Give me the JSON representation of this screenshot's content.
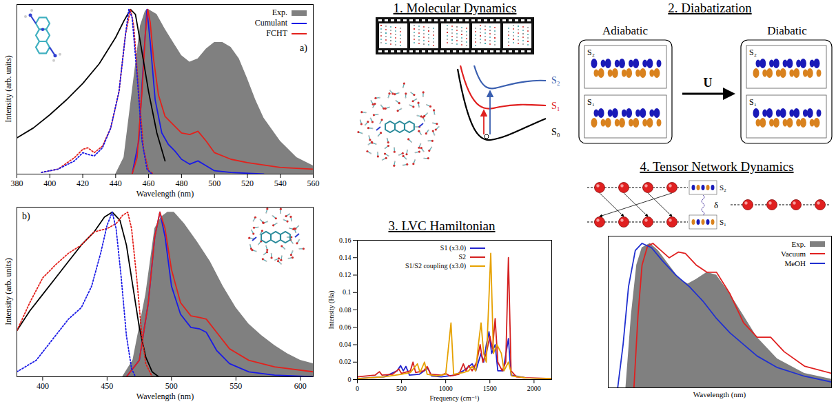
{
  "chart_data": [
    {
      "type": "line",
      "annotations": [
        "a)"
      ],
      "xlabel": "Wavelength (nm)",
      "ylabel": "Intensity (arb. units)",
      "xlim": [
        380,
        560
      ],
      "xticks": [
        380,
        400,
        420,
        440,
        460,
        480,
        500,
        520,
        540,
        560
      ],
      "ylim": [
        0,
        1.03
      ],
      "tick_labels": "x",
      "legend": "upper right",
      "series": [
        {
          "name": "Exp.",
          "type": "area",
          "color": "#808080",
          "x": [
            440,
            445,
            450,
            455,
            458,
            460,
            465,
            470,
            475,
            480,
            485,
            490,
            495,
            500,
            505,
            510,
            515,
            520,
            525,
            530,
            540,
            550,
            560
          ],
          "values": [
            0,
            0.1,
            0.5,
            0.9,
            0.99,
            1.0,
            0.97,
            0.88,
            0.8,
            0.72,
            0.68,
            0.7,
            0.76,
            0.8,
            0.8,
            0.77,
            0.7,
            0.58,
            0.45,
            0.34,
            0.2,
            0.1,
            0.05
          ]
        },
        {
          "name": "Cumulant",
          "type": "line",
          "line_style": "solid",
          "color": "#1a1ae6",
          "x": [
            450,
            454,
            457,
            459,
            461,
            464,
            468,
            472,
            476,
            480,
            485,
            490,
            495,
            500,
            510,
            530
          ],
          "values": [
            0,
            0.2,
            0.7,
            1.0,
            0.8,
            0.45,
            0.25,
            0.18,
            0.14,
            0.09,
            0.06,
            0.08,
            0.05,
            0.02,
            0.01,
            0
          ]
        },
        {
          "name": "FCHT",
          "type": "line",
          "line_style": "solid",
          "color": "#e3211c",
          "x": [
            450,
            453,
            456,
            458,
            459.5,
            461,
            463,
            466,
            470,
            475,
            480,
            485,
            490,
            495,
            500,
            510,
            520,
            540,
            560
          ],
          "values": [
            0,
            0.1,
            0.5,
            0.85,
            1.0,
            0.92,
            0.7,
            0.48,
            0.35,
            0.3,
            0.25,
            0.24,
            0.26,
            0.2,
            0.13,
            0.09,
            0.07,
            0.04,
            0.03
          ]
        },
        {
          "type": "line",
          "line_style": "solid",
          "color": "#000000",
          "x": [
            380,
            390,
            400,
            410,
            420,
            430,
            440,
            445,
            449,
            452,
            455,
            460,
            465,
            470
          ],
          "values": [
            0.22,
            0.28,
            0.36,
            0.45,
            0.55,
            0.67,
            0.83,
            0.93,
            1.0,
            0.97,
            0.8,
            0.5,
            0.25,
            0.08
          ]
        },
        {
          "type": "line",
          "line_style": "dotted",
          "color": "#e3211c",
          "x": [
            395,
            405,
            415,
            420,
            423,
            427,
            432,
            437,
            442,
            446,
            449,
            451,
            454,
            457,
            460,
            463
          ],
          "values": [
            0.01,
            0.03,
            0.1,
            0.15,
            0.16,
            0.13,
            0.17,
            0.28,
            0.5,
            0.85,
            1.0,
            0.9,
            0.5,
            0.15,
            0.02,
            0
          ]
        },
        {
          "type": "line",
          "line_style": "dotted",
          "color": "#1a1ae6",
          "x": [
            395,
            405,
            415,
            420,
            423,
            427,
            432,
            437,
            442,
            446,
            448,
            450,
            453,
            456,
            459,
            462
          ],
          "values": [
            0.01,
            0.03,
            0.08,
            0.13,
            0.12,
            0.11,
            0.16,
            0.28,
            0.5,
            0.85,
            1.0,
            0.95,
            0.6,
            0.2,
            0.03,
            0
          ]
        }
      ]
    },
    {
      "type": "line",
      "annotations": [
        "b)"
      ],
      "xlabel": "Wavelength (nm)",
      "ylabel": "Intensity (arb. units)",
      "xlim": [
        380,
        610
      ],
      "xticks": [
        400,
        450,
        500,
        550,
        600
      ],
      "ylim": [
        0,
        1.03
      ],
      "tick_labels": "x",
      "series": [
        {
          "type": "area",
          "color": "#808080",
          "x": [
            462,
            470,
            480,
            487,
            492,
            497,
            502,
            510,
            520,
            530,
            540,
            550,
            560,
            570,
            580,
            590,
            600,
            610
          ],
          "values": [
            0,
            0.1,
            0.5,
            0.9,
            0.97,
            1.0,
            1.0,
            0.93,
            0.82,
            0.7,
            0.55,
            0.42,
            0.32,
            0.25,
            0.19,
            0.14,
            0.1,
            0.08
          ]
        },
        {
          "type": "line",
          "line_style": "solid",
          "color": "#1a1ae6",
          "x": [
            465,
            475,
            482,
            487,
            491,
            495,
            500,
            507,
            515,
            522,
            527,
            535,
            545,
            560,
            580,
            610
          ],
          "values": [
            0,
            0.1,
            0.45,
            0.85,
            1.0,
            0.85,
            0.55,
            0.38,
            0.3,
            0.29,
            0.27,
            0.16,
            0.08,
            0.03,
            0.01,
            0
          ]
        },
        {
          "type": "line",
          "line_style": "solid",
          "color": "#e3211c",
          "x": [
            465,
            475,
            482,
            487,
            491,
            495,
            500,
            507,
            515,
            522,
            527,
            535,
            545,
            560,
            580,
            610
          ],
          "values": [
            0,
            0.1,
            0.45,
            0.85,
            1.0,
            0.9,
            0.65,
            0.45,
            0.37,
            0.36,
            0.35,
            0.27,
            0.17,
            0.1,
            0.06,
            0.03
          ]
        },
        {
          "type": "line",
          "line_style": "solid",
          "color": "#000000",
          "x": [
            380,
            390,
            400,
            410,
            420,
            430,
            440,
            448,
            454,
            460,
            465,
            470,
            475,
            480,
            485,
            490
          ],
          "values": [
            0.28,
            0.4,
            0.5,
            0.6,
            0.7,
            0.8,
            0.88,
            0.97,
            1.0,
            0.95,
            0.8,
            0.55,
            0.3,
            0.12,
            0.03,
            0
          ]
        },
        {
          "type": "line",
          "line_style": "dotted",
          "color": "#e3211c",
          "x": [
            380,
            390,
            400,
            410,
            420,
            430,
            440,
            450,
            457,
            462,
            466,
            469,
            473,
            477,
            480,
            485
          ],
          "values": [
            0.28,
            0.45,
            0.6,
            0.68,
            0.75,
            0.8,
            0.88,
            0.9,
            0.93,
            0.98,
            1.0,
            0.9,
            0.6,
            0.25,
            0.08,
            0
          ]
        },
        {
          "type": "line",
          "line_style": "dotted",
          "color": "#1a1ae6",
          "x": [
            380,
            395,
            410,
            420,
            430,
            438,
            445,
            450,
            454,
            457,
            461,
            465,
            469,
            472
          ],
          "values": [
            0.03,
            0.1,
            0.25,
            0.35,
            0.42,
            0.55,
            0.75,
            0.92,
            1.0,
            0.9,
            0.6,
            0.25,
            0.05,
            0
          ]
        }
      ]
    },
    {
      "type": "line",
      "title": "3. LVC Hamiltonian",
      "xlabel": "Frequency (cm⁻¹)",
      "ylabel": "Intensity (Ha)",
      "xlim": [
        0,
        2200
      ],
      "xticks": [
        0,
        500,
        1000,
        1500,
        2000
      ],
      "ylim": [
        0,
        0.16
      ],
      "yticks": [
        0,
        0.02,
        0.04,
        0.06,
        0.08,
        0.1,
        0.12,
        0.14,
        0.16
      ],
      "legend": "upper left",
      "series": [
        {
          "name": "S1 (x3.0)",
          "type": "line",
          "line_style": "solid",
          "color": "#2222cc",
          "x": [
            0,
            300,
            450,
            490,
            520,
            550,
            590,
            700,
            800,
            840,
            950,
            1100,
            1200,
            1300,
            1340,
            1400,
            1430,
            1460,
            1490,
            1520,
            1560,
            1590,
            1650,
            1710,
            1740,
            1900,
            2200
          ],
          "values": [
            0.001,
            0.003,
            0.01,
            0.016,
            0.01,
            0.015,
            0.005,
            0.006,
            0.013,
            0.004,
            0.003,
            0.005,
            0.01,
            0.018,
            0.01,
            0.03,
            0.02,
            0.04,
            0.055,
            0.03,
            0.04,
            0.01,
            0.01,
            0.047,
            0.005,
            0.002,
            0.001
          ]
        },
        {
          "name": "S2",
          "type": "line",
          "line_style": "solid",
          "color": "#d42020",
          "x": [
            0,
            100,
            200,
            250,
            280,
            400,
            470,
            500,
            600,
            630,
            660,
            750,
            790,
            830,
            950,
            1000,
            1050,
            1150,
            1200,
            1230,
            1260,
            1300,
            1350,
            1390,
            1420,
            1460,
            1500,
            1530,
            1560,
            1590,
            1640,
            1680,
            1710,
            1740,
            1800,
            1900,
            2200
          ],
          "values": [
            0.003,
            0.004,
            0.005,
            0.009,
            0.005,
            0.006,
            0.012,
            0.007,
            0.01,
            0.02,
            0.008,
            0.01,
            0.015,
            0.006,
            0.005,
            0.007,
            0.004,
            0.006,
            0.018,
            0.01,
            0.016,
            0.01,
            0.02,
            0.04,
            0.02,
            0.03,
            0.05,
            0.035,
            0.07,
            0.02,
            0.01,
            0.02,
            0.14,
            0.01,
            0.003,
            0.002,
            0.001
          ]
        },
        {
          "name": "S1/S2 coupling (x3.0)",
          "type": "line",
          "line_style": "solid",
          "color": "#e6a100",
          "x": [
            0,
            300,
            500,
            600,
            680,
            710,
            760,
            790,
            900,
            1000,
            1060,
            1090,
            1200,
            1260,
            1300,
            1340,
            1370,
            1400,
            1430,
            1460,
            1510,
            1540,
            1580,
            1630,
            1660,
            1710,
            1750,
            1900,
            2200
          ],
          "values": [
            0.001,
            0.003,
            0.006,
            0.008,
            0.018,
            0.008,
            0.02,
            0.006,
            0.004,
            0.006,
            0.065,
            0.006,
            0.008,
            0.01,
            0.015,
            0.01,
            0.04,
            0.065,
            0.03,
            0.02,
            0.145,
            0.03,
            0.04,
            0.03,
            0.01,
            0.02,
            0.004,
            0.002,
            0.001
          ]
        }
      ]
    },
    {
      "type": "line",
      "xlabel": "Wavelength (nm)",
      "xlim": [
        455,
        620
      ],
      "ylim": [
        0,
        1.05
      ],
      "tick_labels": false,
      "legend": "upper right",
      "series": [
        {
          "name": "Exp.",
          "type": "area",
          "color": "#808080",
          "x": [
            468,
            472,
            476,
            480,
            486,
            492,
            500,
            508,
            514,
            520,
            528,
            535,
            545,
            555,
            565,
            580,
            600,
            620
          ],
          "values": [
            0,
            0.5,
            0.85,
            0.97,
            1.0,
            0.95,
            0.85,
            0.75,
            0.72,
            0.75,
            0.8,
            0.78,
            0.65,
            0.5,
            0.35,
            0.2,
            0.1,
            0.06
          ]
        },
        {
          "name": "Vacuum",
          "type": "line",
          "line_style": "solid",
          "color": "#e02020",
          "x": [
            474,
            477,
            480,
            484,
            488,
            494,
            500,
            507,
            512,
            520,
            528,
            535,
            545,
            555,
            565,
            575,
            585,
            600,
            620
          ],
          "values": [
            0,
            0.5,
            0.85,
            0.98,
            1.0,
            0.95,
            0.9,
            0.94,
            0.93,
            0.85,
            0.8,
            0.8,
            0.65,
            0.45,
            0.35,
            0.35,
            0.25,
            0.15,
            0.1
          ]
        },
        {
          "name": "MeOH",
          "type": "line",
          "line_style": "solid",
          "color": "#2030d0",
          "x": [
            462,
            466,
            470,
            475,
            480,
            487,
            495,
            505,
            515,
            525,
            535,
            545,
            555,
            565,
            580,
            600,
            620
          ],
          "values": [
            0,
            0.3,
            0.7,
            0.95,
            1.0,
            0.97,
            0.88,
            0.78,
            0.7,
            0.6,
            0.48,
            0.38,
            0.3,
            0.22,
            0.14,
            0.08,
            0.04
          ]
        }
      ]
    }
  ],
  "diagram": {
    "molecular_dynamics": {
      "title": "1. Molecular Dynamics",
      "states": [
        "S₂",
        "S₁",
        "S₀"
      ]
    },
    "diabatization": {
      "title": "2. Diabatization",
      "left": "Adiabatic",
      "right": "Diabatic",
      "transform": "U",
      "states": [
        "S₂",
        "S₁"
      ]
    },
    "tensor_network": {
      "title": "4. Tensor Network Dynamics",
      "coupling": "δ",
      "states": [
        "S₂",
        "S₁"
      ]
    }
  }
}
